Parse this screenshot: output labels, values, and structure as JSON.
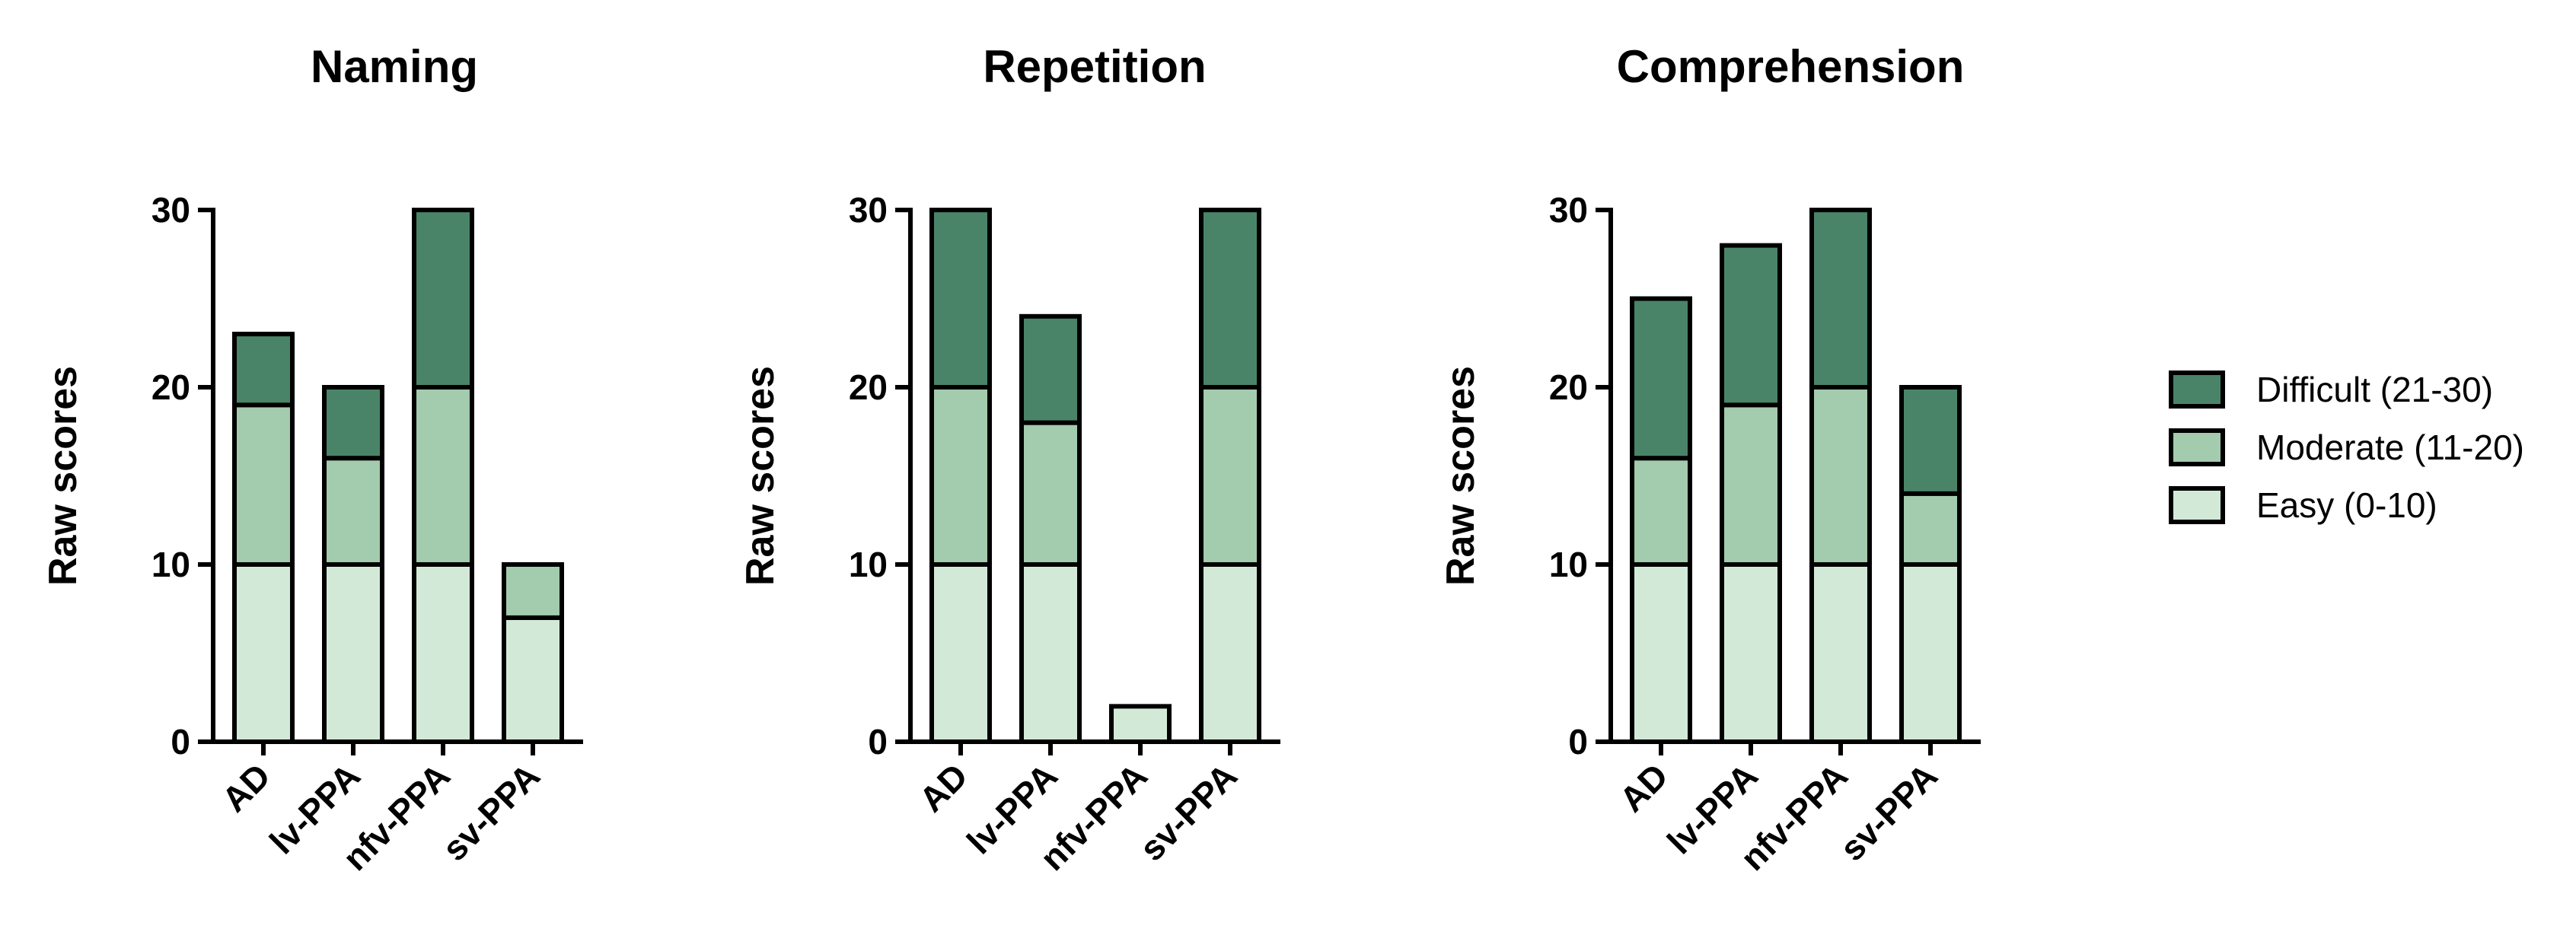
{
  "colors": {
    "easy": "#d3e9d8",
    "moderate": "#a3cbad",
    "difficult": "#4a8468",
    "axis": "#000000"
  },
  "legend": {
    "placement": "right",
    "items": [
      {
        "key": "difficult",
        "label": "Difficult (21-30)"
      },
      {
        "key": "moderate",
        "label": "Moderate (11-20)"
      },
      {
        "key": "easy",
        "label": "Easy (0-10)"
      }
    ]
  },
  "chart_data": [
    {
      "type": "bar",
      "stacked": true,
      "title": "Naming",
      "ylabel": "Raw scores",
      "ylim": [
        0,
        30
      ],
      "yticks": [
        0,
        10,
        20,
        30
      ],
      "categories": [
        "AD",
        "lv-PPA",
        "nfv-PPA",
        "sv-PPA"
      ],
      "series": [
        {
          "name": "Easy (0-10)",
          "key": "easy",
          "values": [
            10,
            10,
            10,
            7
          ]
        },
        {
          "name": "Moderate (11-20)",
          "key": "moderate",
          "values": [
            9,
            6,
            10,
            3
          ]
        },
        {
          "name": "Difficult (21-30)",
          "key": "difficult",
          "values": [
            4,
            4,
            10,
            0
          ]
        }
      ]
    },
    {
      "type": "bar",
      "stacked": true,
      "title": "Repetition",
      "ylabel": "Raw scores",
      "ylim": [
        0,
        30
      ],
      "yticks": [
        0,
        10,
        20,
        30
      ],
      "categories": [
        "AD",
        "lv-PPA",
        "nfv-PPA",
        "sv-PPA"
      ],
      "series": [
        {
          "name": "Easy (0-10)",
          "key": "easy",
          "values": [
            10,
            10,
            2,
            10
          ]
        },
        {
          "name": "Moderate (11-20)",
          "key": "moderate",
          "values": [
            10,
            8,
            0,
            10
          ]
        },
        {
          "name": "Difficult (21-30)",
          "key": "difficult",
          "values": [
            10,
            6,
            0,
            10
          ]
        }
      ]
    },
    {
      "type": "bar",
      "stacked": true,
      "title": "Comprehension",
      "ylabel": "Raw scores",
      "ylim": [
        0,
        30
      ],
      "yticks": [
        0,
        10,
        20,
        30
      ],
      "categories": [
        "AD",
        "lv-PPA",
        "nfv-PPA",
        "sv-PPA"
      ],
      "series": [
        {
          "name": "Easy (0-10)",
          "key": "easy",
          "values": [
            10,
            10,
            10,
            10
          ]
        },
        {
          "name": "Moderate (11-20)",
          "key": "moderate",
          "values": [
            6,
            9,
            10,
            4
          ]
        },
        {
          "name": "Difficult (21-30)",
          "key": "difficult",
          "values": [
            9,
            9,
            10,
            6
          ]
        }
      ]
    }
  ]
}
